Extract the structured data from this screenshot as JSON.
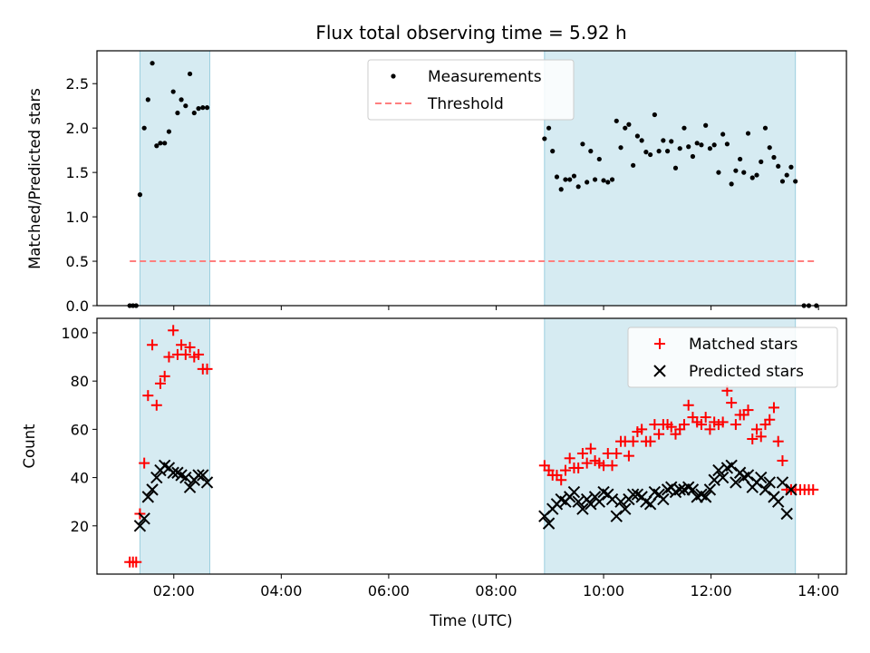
{
  "chart_data": [
    {
      "type": "scatter",
      "title": "Flux total observing time = 5.92 h",
      "xlabel": "",
      "ylabel": "Matched/Predicted stars",
      "xlim": [
        0.57,
        14.52
      ],
      "ylim": [
        0.0,
        2.87
      ],
      "yticks": [
        0.0,
        0.5,
        1.0,
        1.5,
        2.0,
        2.5
      ],
      "ytick_labels": [
        "0.0",
        "0.5",
        "1.0",
        "1.5",
        "2.0",
        "2.5"
      ],
      "legend_position": "top-center",
      "shaded_intervals": [
        [
          1.37,
          2.67
        ],
        [
          8.9,
          13.57
        ]
      ],
      "threshold": {
        "name": "Threshold",
        "y": 0.5,
        "x": [
          1.18,
          13.98
        ],
        "color": "#ff7f7f"
      },
      "series": [
        {
          "name": "Measurements",
          "color": "#000000",
          "marker": "dot",
          "x": [
            1.18,
            1.24,
            1.3,
            1.37,
            1.45,
            1.52,
            1.6,
            1.68,
            1.75,
            1.83,
            1.91,
            1.99,
            2.07,
            2.14,
            2.22,
            2.3,
            2.38,
            2.46,
            2.54,
            2.62,
            8.9,
            8.98,
            9.05,
            9.13,
            9.21,
            9.29,
            9.37,
            9.45,
            9.53,
            9.61,
            9.69,
            9.76,
            9.84,
            9.92,
            10.0,
            10.08,
            10.16,
            10.24,
            10.32,
            10.4,
            10.47,
            10.55,
            10.63,
            10.71,
            10.79,
            10.87,
            10.95,
            11.03,
            11.11,
            11.19,
            11.26,
            11.34,
            11.42,
            11.5,
            11.58,
            11.66,
            11.74,
            11.82,
            11.9,
            11.98,
            12.06,
            12.14,
            12.22,
            12.3,
            12.38,
            12.46,
            12.54,
            12.61,
            12.69,
            12.77,
            12.85,
            12.93,
            13.01,
            13.09,
            13.17,
            13.25,
            13.33,
            13.41,
            13.49,
            13.57,
            13.73,
            13.82,
            13.96
          ],
          "y": [
            0.0,
            0.0,
            0.0,
            1.25,
            2.0,
            2.32,
            2.73,
            1.8,
            1.83,
            1.83,
            1.96,
            2.41,
            2.17,
            2.32,
            2.25,
            2.61,
            2.17,
            2.22,
            2.23,
            2.23,
            1.88,
            2.0,
            1.74,
            1.45,
            1.31,
            1.42,
            1.42,
            1.46,
            1.34,
            1.82,
            1.39,
            1.74,
            1.42,
            1.65,
            1.41,
            1.39,
            1.42,
            2.08,
            1.78,
            2.0,
            2.04,
            1.58,
            1.91,
            1.86,
            1.73,
            1.7,
            2.15,
            1.74,
            1.86,
            1.74,
            1.85,
            1.55,
            1.77,
            2.0,
            1.79,
            1.68,
            1.83,
            1.81,
            2.03,
            1.77,
            1.81,
            1.5,
            1.93,
            1.82,
            1.37,
            1.52,
            1.65,
            1.5,
            1.94,
            1.44,
            1.47,
            1.62,
            2.0,
            1.78,
            1.67,
            1.57,
            1.4,
            1.47,
            1.56,
            1.4,
            0.0,
            0.0,
            0.0
          ]
        }
      ]
    },
    {
      "type": "scatter",
      "title": "",
      "xlabel": "Time (UTC)",
      "ylabel": "Count",
      "xlim": [
        0.57,
        14.52
      ],
      "ylim": [
        0,
        106
      ],
      "yticks": [
        20,
        40,
        60,
        80,
        100
      ],
      "ytick_labels": [
        "20",
        "40",
        "60",
        "80",
        "100"
      ],
      "xticks": [
        2,
        4,
        6,
        8,
        10,
        12,
        14
      ],
      "xtick_labels": [
        "02:00",
        "04:00",
        "06:00",
        "08:00",
        "10:00",
        "12:00",
        "14:00"
      ],
      "legend_position": "top-right",
      "shaded_intervals": [
        [
          1.37,
          2.67
        ],
        [
          8.9,
          13.57
        ]
      ],
      "series": [
        {
          "name": "Matched stars",
          "color": "#ff0000",
          "marker": "plus",
          "x": [
            1.18,
            1.24,
            1.3,
            1.37,
            1.45,
            1.52,
            1.6,
            1.68,
            1.75,
            1.83,
            1.91,
            1.99,
            2.07,
            2.14,
            2.22,
            2.3,
            2.38,
            2.46,
            2.54,
            2.62,
            8.9,
            8.98,
            9.05,
            9.13,
            9.21,
            9.29,
            9.37,
            9.45,
            9.53,
            9.61,
            9.69,
            9.76,
            9.84,
            9.92,
            10.0,
            10.08,
            10.16,
            10.24,
            10.32,
            10.4,
            10.47,
            10.55,
            10.63,
            10.71,
            10.79,
            10.87,
            10.95,
            11.03,
            11.11,
            11.19,
            11.26,
            11.34,
            11.42,
            11.5,
            11.58,
            11.66,
            11.74,
            11.82,
            11.9,
            11.98,
            12.06,
            12.14,
            12.22,
            12.3,
            12.38,
            12.46,
            12.54,
            12.61,
            12.69,
            12.77,
            12.85,
            12.93,
            13.01,
            13.09,
            13.17,
            13.25,
            13.33,
            13.41,
            13.49,
            13.57,
            13.66,
            13.74,
            13.82,
            13.9
          ],
          "y": [
            5,
            5,
            5,
            25,
            46,
            74,
            95,
            70,
            79,
            82,
            90,
            101,
            91,
            95,
            91,
            94,
            90,
            91,
            85,
            85,
            45,
            43,
            41,
            41,
            39,
            43,
            48,
            44,
            44,
            50,
            46,
            52,
            47,
            46,
            45,
            50,
            45,
            50,
            55,
            55,
            49,
            55,
            59,
            60,
            55,
            55,
            62,
            58,
            62,
            62,
            61,
            58,
            60,
            62,
            70,
            65,
            63,
            62,
            65,
            60,
            63,
            62,
            63,
            76,
            71,
            62,
            66,
            66,
            68,
            56,
            60,
            57,
            62,
            64,
            69,
            55,
            47,
            35,
            35,
            35,
            35,
            35,
            35,
            35
          ]
        },
        {
          "name": "Predicted stars",
          "color": "#000000",
          "marker": "x",
          "x": [
            1.37,
            1.45,
            1.52,
            1.6,
            1.68,
            1.75,
            1.83,
            1.91,
            1.99,
            2.07,
            2.14,
            2.22,
            2.3,
            2.38,
            2.46,
            2.54,
            2.62,
            8.9,
            8.98,
            9.05,
            9.13,
            9.21,
            9.29,
            9.37,
            9.45,
            9.53,
            9.61,
            9.69,
            9.76,
            9.84,
            9.92,
            10.0,
            10.08,
            10.16,
            10.24,
            10.32,
            10.4,
            10.47,
            10.55,
            10.63,
            10.71,
            10.79,
            10.87,
            10.95,
            11.03,
            11.11,
            11.19,
            11.26,
            11.34,
            11.42,
            11.5,
            11.58,
            11.66,
            11.74,
            11.82,
            11.9,
            11.98,
            12.06,
            12.14,
            12.22,
            12.3,
            12.38,
            12.46,
            12.54,
            12.61,
            12.69,
            12.77,
            12.85,
            12.93,
            13.01,
            13.09,
            13.17,
            13.25,
            13.33,
            13.41,
            13.49
          ],
          "y": [
            20,
            23,
            32,
            35,
            40,
            43,
            45,
            44,
            42,
            42,
            41,
            40,
            36,
            39,
            41,
            41,
            38,
            24,
            21,
            27,
            29,
            31,
            30,
            32,
            34,
            30,
            27,
            31,
            29,
            32,
            30,
            34,
            33,
            31,
            24,
            30,
            27,
            31,
            33,
            33,
            32,
            30,
            29,
            34,
            33,
            31,
            35,
            36,
            34,
            35,
            35,
            36,
            35,
            32,
            33,
            32,
            35,
            39,
            43,
            40,
            44,
            45,
            38,
            42,
            40,
            41,
            36,
            38,
            40,
            35,
            38,
            32,
            30,
            38,
            25,
            35
          ]
        }
      ]
    }
  ]
}
